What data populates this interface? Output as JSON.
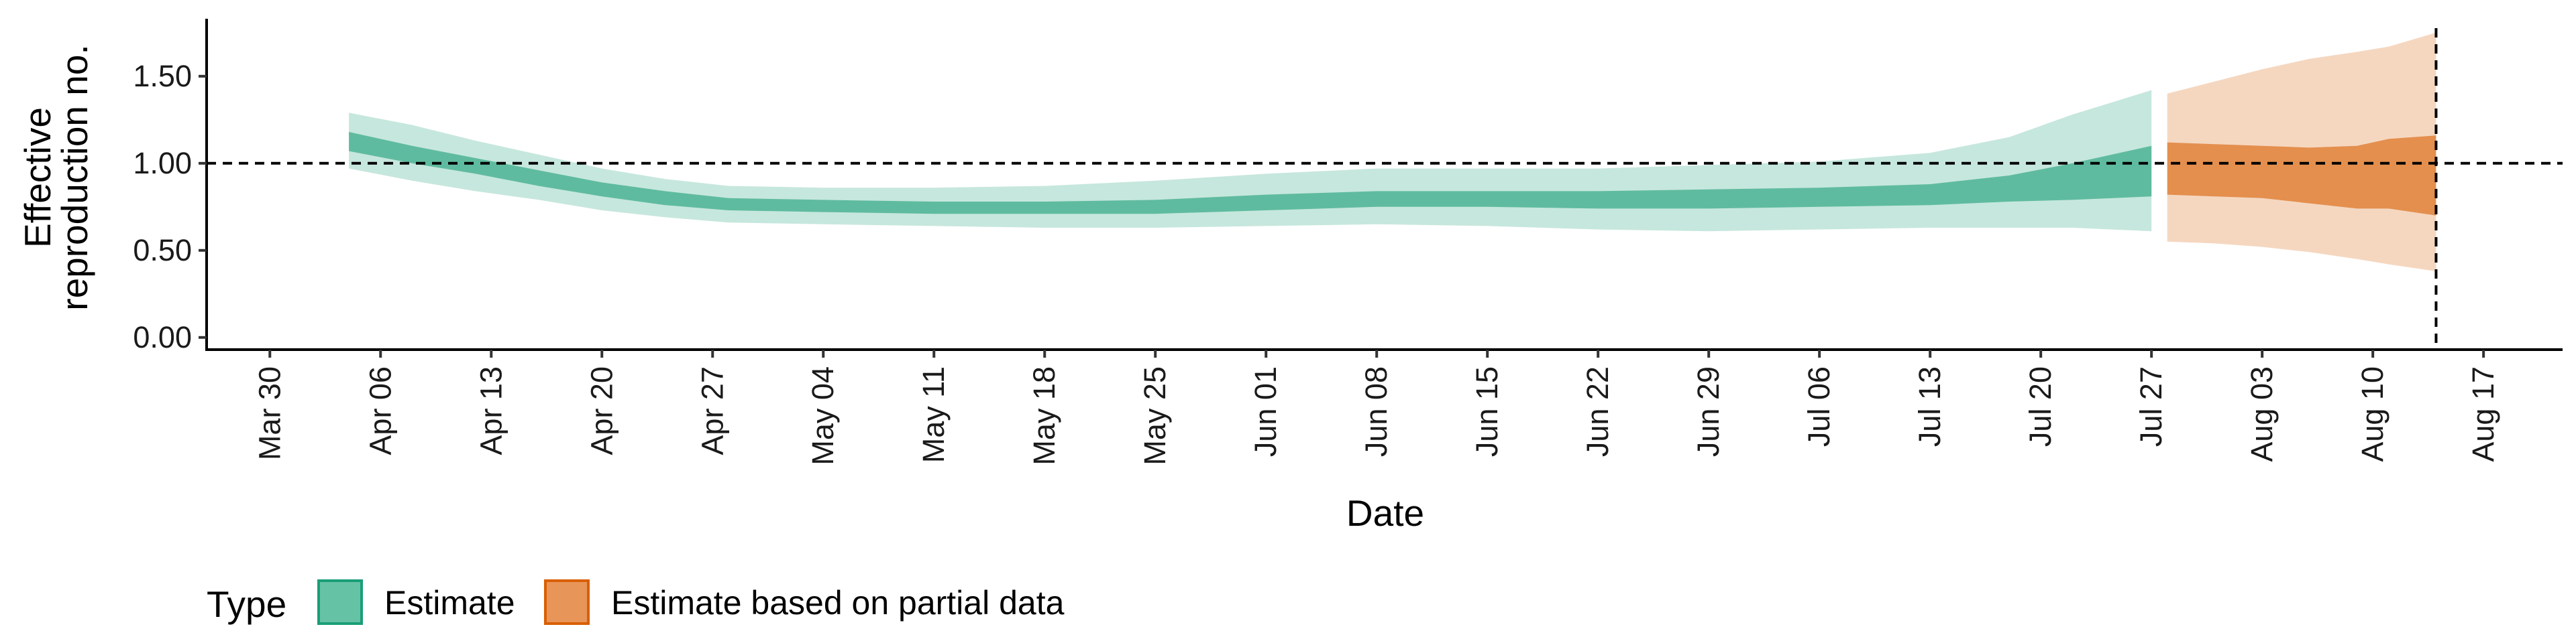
{
  "chart_data": {
    "type": "area",
    "xlabel": "Date",
    "ylabel_lines": [
      "Effective",
      "reproduction no."
    ],
    "x_domain": [
      "2020-03-26",
      "2020-08-22"
    ],
    "ylim": [
      -0.07,
      1.83
    ],
    "y_ticks": [
      0.0,
      0.5,
      1.0,
      1.5
    ],
    "y_tick_labels": [
      "0.00",
      "0.50",
      "1.00",
      "1.50"
    ],
    "x_ticks": [
      "2020-03-30",
      "2020-04-06",
      "2020-04-13",
      "2020-04-20",
      "2020-04-27",
      "2020-05-04",
      "2020-05-11",
      "2020-05-18",
      "2020-05-25",
      "2020-06-01",
      "2020-06-08",
      "2020-06-15",
      "2020-06-22",
      "2020-06-29",
      "2020-07-06",
      "2020-07-13",
      "2020-07-20",
      "2020-07-27",
      "2020-08-03",
      "2020-08-10",
      "2020-08-17"
    ],
    "x_tick_labels": [
      "Mar 30",
      "Apr 06",
      "Apr 13",
      "Apr 20",
      "Apr 27",
      "May 04",
      "May 11",
      "May 18",
      "May 25",
      "Jun 01",
      "Jun 08",
      "Jun 15",
      "Jun 22",
      "Jun 29",
      "Jul 06",
      "Jul 13",
      "Jul 20",
      "Jul 27",
      "Aug 03",
      "Aug 10",
      "Aug 17"
    ],
    "reference_line_y": 1.0,
    "vertical_line_x": "2020-08-14",
    "grid": false,
    "legend": {
      "title": "Type",
      "position": "bottom-left",
      "entries": [
        {
          "label": "Estimate",
          "fill": "#66c2a5",
          "border": "#1b9e77"
        },
        {
          "label": "Estimate based on partial data",
          "fill": "#e8955a",
          "border": "#d95f02"
        }
      ]
    },
    "series": [
      {
        "name": "Estimate",
        "color": "#1b9e77",
        "inner_opacity": 0.6,
        "outer_opacity": 0.25,
        "x": [
          "2020-04-04",
          "2020-04-08",
          "2020-04-12",
          "2020-04-16",
          "2020-04-20",
          "2020-04-24",
          "2020-04-28",
          "2020-05-04",
          "2020-05-11",
          "2020-05-18",
          "2020-05-25",
          "2020-06-01",
          "2020-06-08",
          "2020-06-15",
          "2020-06-22",
          "2020-06-29",
          "2020-07-06",
          "2020-07-13",
          "2020-07-18",
          "2020-07-22",
          "2020-07-27"
        ],
        "inner_upper": [
          1.18,
          1.1,
          1.03,
          0.96,
          0.89,
          0.84,
          0.8,
          0.79,
          0.78,
          0.78,
          0.79,
          0.82,
          0.84,
          0.84,
          0.84,
          0.85,
          0.86,
          0.88,
          0.93,
          1.0,
          1.1
        ],
        "inner_lower": [
          1.07,
          1.0,
          0.94,
          0.87,
          0.81,
          0.76,
          0.73,
          0.72,
          0.71,
          0.71,
          0.71,
          0.73,
          0.75,
          0.75,
          0.74,
          0.74,
          0.75,
          0.76,
          0.78,
          0.79,
          0.81
        ],
        "outer_upper": [
          1.29,
          1.22,
          1.13,
          1.05,
          0.97,
          0.91,
          0.87,
          0.86,
          0.86,
          0.87,
          0.9,
          0.94,
          0.97,
          0.97,
          0.97,
          0.99,
          1.01,
          1.06,
          1.15,
          1.28,
          1.42
        ],
        "outer_lower": [
          0.97,
          0.9,
          0.84,
          0.79,
          0.73,
          0.69,
          0.66,
          0.65,
          0.64,
          0.63,
          0.63,
          0.64,
          0.65,
          0.64,
          0.62,
          0.61,
          0.62,
          0.63,
          0.63,
          0.63,
          0.61
        ]
      },
      {
        "name": "Estimate based on partial data",
        "color": "#d95f02",
        "inner_opacity": 0.6,
        "outer_opacity": 0.25,
        "x": [
          "2020-07-28",
          "2020-07-31",
          "2020-08-03",
          "2020-08-06",
          "2020-08-09",
          "2020-08-11",
          "2020-08-14"
        ],
        "inner_upper": [
          1.12,
          1.11,
          1.1,
          1.09,
          1.1,
          1.14,
          1.16
        ],
        "inner_lower": [
          0.82,
          0.81,
          0.8,
          0.77,
          0.74,
          0.74,
          0.7
        ],
        "outer_upper": [
          1.4,
          1.47,
          1.54,
          1.6,
          1.64,
          1.67,
          1.75
        ],
        "outer_lower": [
          0.55,
          0.54,
          0.52,
          0.49,
          0.45,
          0.42,
          0.38
        ]
      }
    ]
  }
}
